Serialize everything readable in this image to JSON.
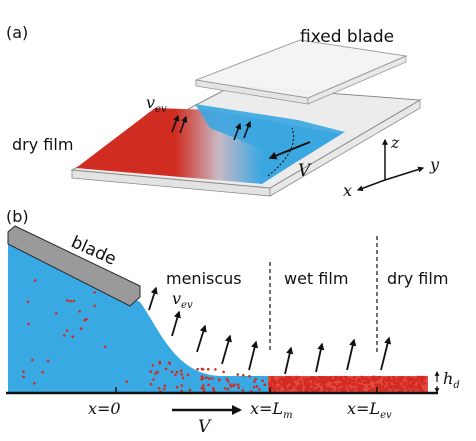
{
  "panel_a": {
    "label": "(a)",
    "fixed_blade": "fixed blade",
    "dry_film": "dry film",
    "v_ev": {
      "main": "v",
      "sub": "ev"
    },
    "velocity": "V",
    "axes": {
      "x": "x",
      "y": "y",
      "z": "z"
    }
  },
  "panel_b": {
    "label": "(b)",
    "blade": "blade",
    "meniscus": "meniscus",
    "wet_film": "wet film",
    "dry_film": "dry film",
    "v_ev": {
      "main": "v",
      "sub": "ev"
    },
    "velocity": "V",
    "hd": {
      "main": "h",
      "sub": "d"
    },
    "x0": "x=0",
    "xLm": {
      "main": "x=L",
      "sub": "m"
    },
    "xLev": {
      "main": "x=L",
      "sub": "ev"
    }
  },
  "colors": {
    "solution_blue": "#39a9e3",
    "particle_red": "#d32a22",
    "film_red": "#d12c21",
    "blade_gray": "#9a9a9a"
  }
}
